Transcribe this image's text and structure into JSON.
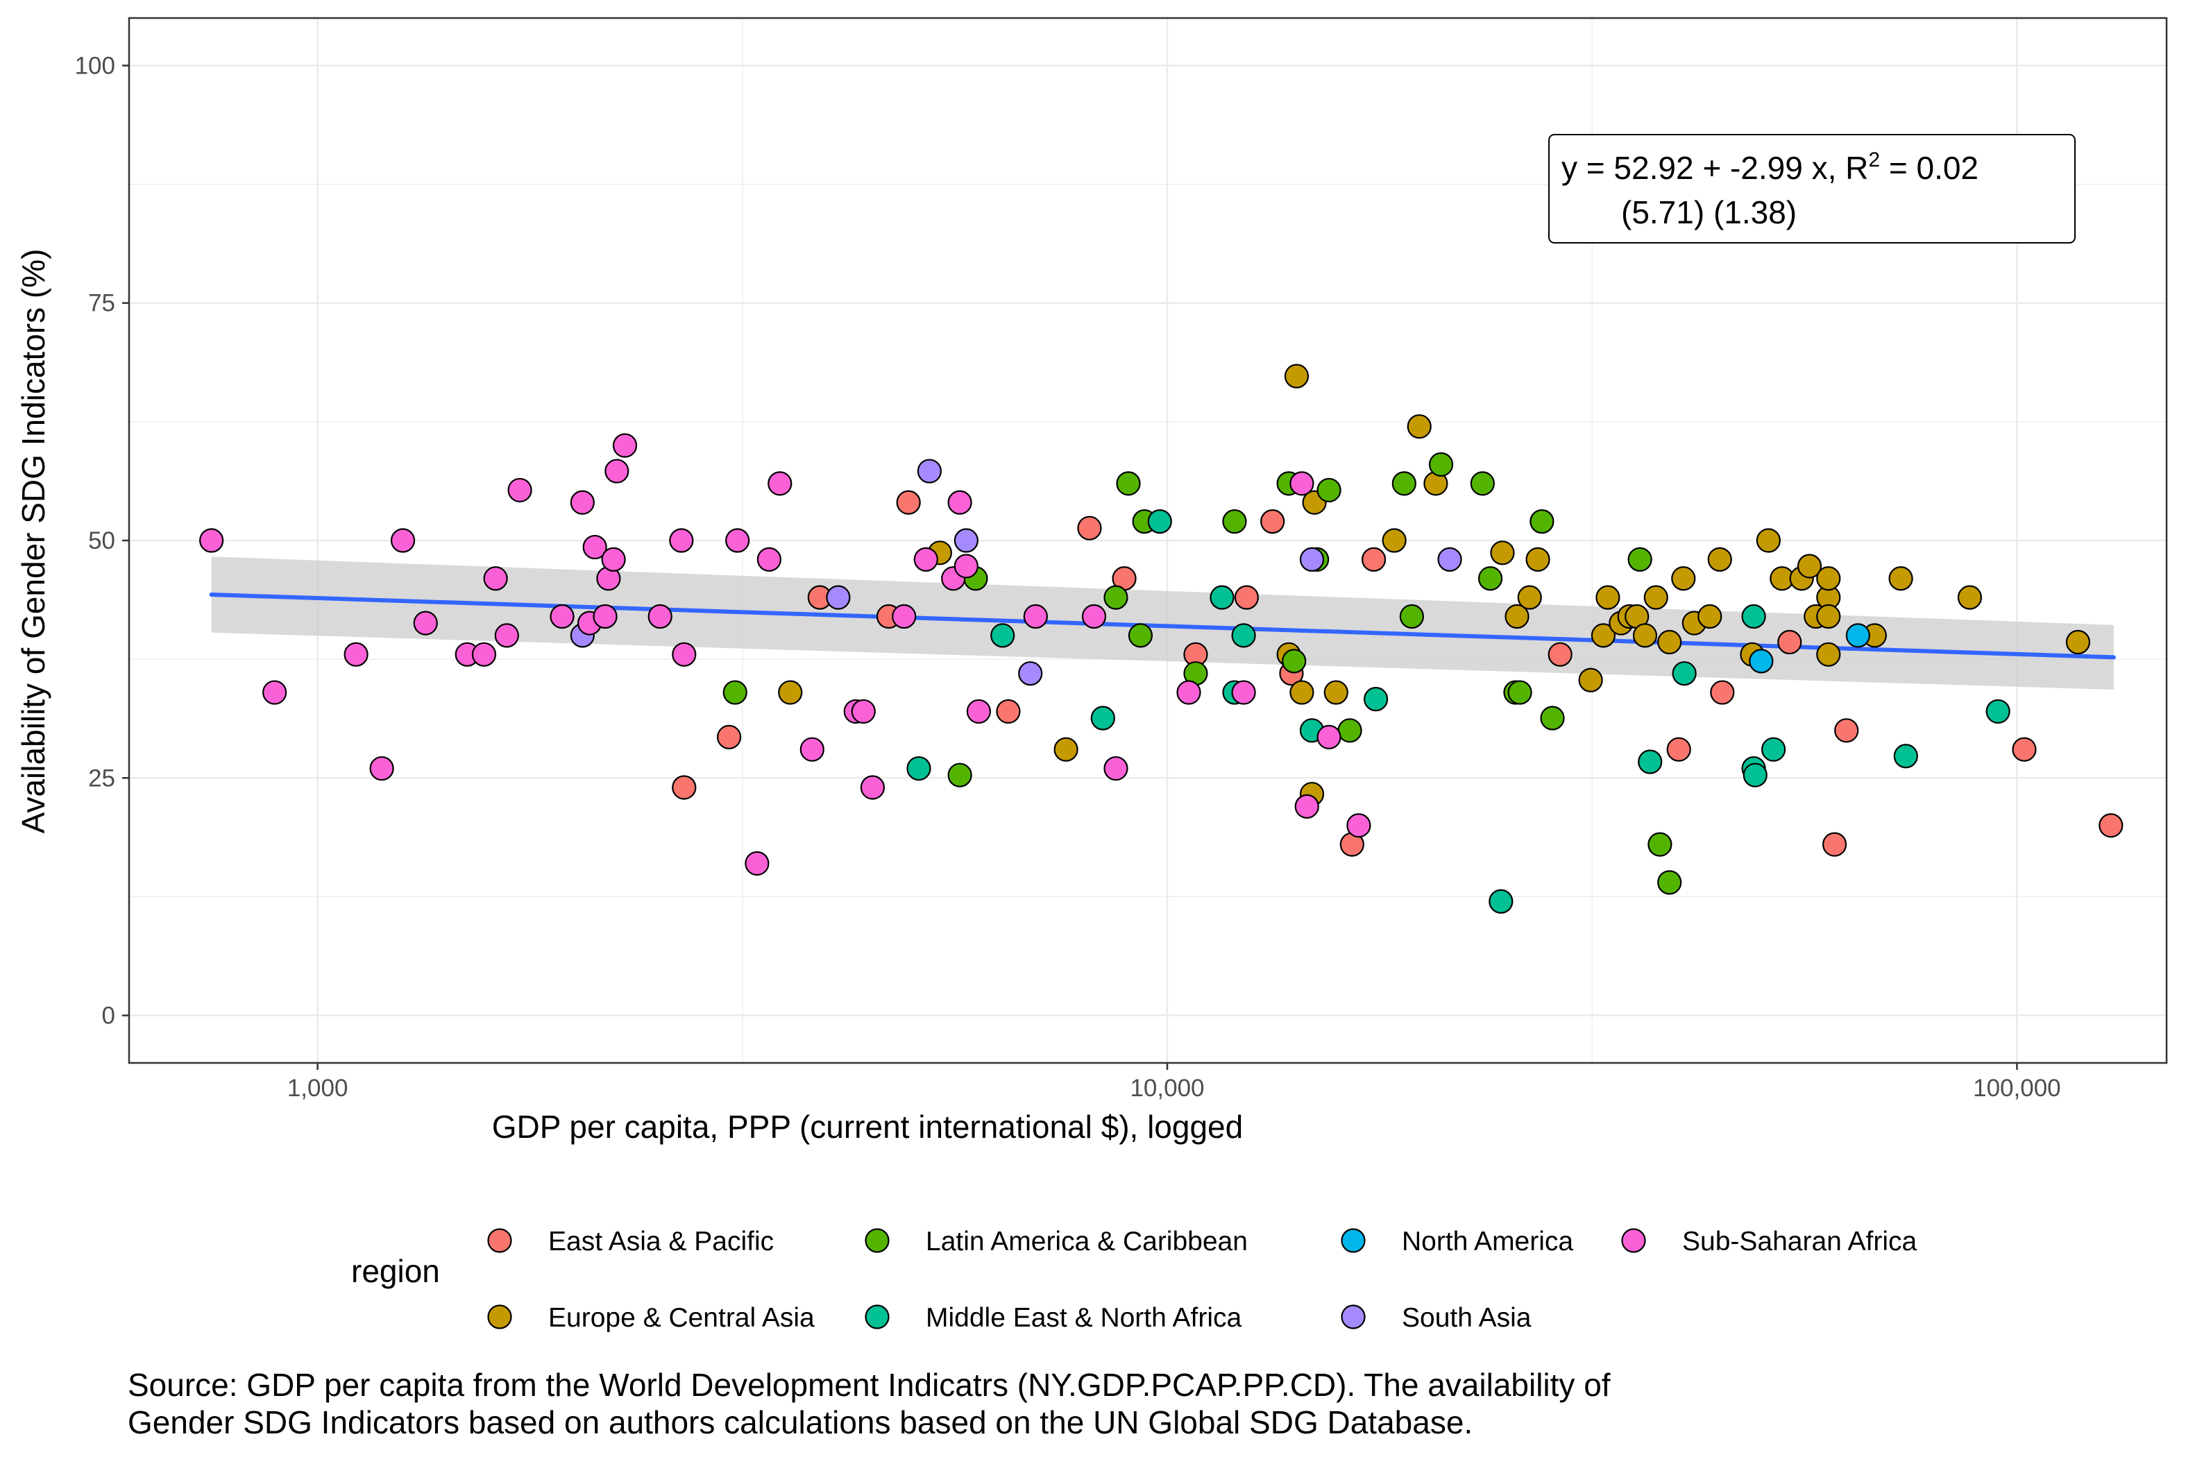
{
  "chart_data": {
    "type": "scatter",
    "xlabel": "GDP per capita, PPP (current international $), logged",
    "ylabel": "Availability of Gender SDG Indicators (%)",
    "x_scale": "log10",
    "xlim": [
      600,
      150000
    ],
    "ylim": [
      -5,
      105
    ],
    "x_ticks": [
      1000,
      10000,
      100000
    ],
    "x_tick_labels": [
      "1,000",
      "10,000",
      "100,000"
    ],
    "y_ticks": [
      0,
      25,
      50,
      75,
      100
    ],
    "y_tick_labels": [
      "0",
      "25",
      "50",
      "75",
      "100"
    ],
    "grid": true,
    "annotation": {
      "line1_prefix": "y = 52.92 + -2.99 x, R",
      "line1_sup": "2",
      "line1_suffix": " = 0.02",
      "line2": "(5.71) (1.38)"
    },
    "trend": {
      "x": [
        750,
        130000
      ],
      "y": [
        44.3,
        37.7
      ],
      "lower": [
        40.3,
        34.3
      ],
      "upper": [
        48.3,
        41.1
      ],
      "color": "#3366ff",
      "band_color": "#cccccc"
    },
    "legend": {
      "title": "region",
      "position": "bottom",
      "entries": [
        {
          "name": "East Asia & Pacific",
          "color": "#f8766d"
        },
        {
          "name": "Europe & Central Asia",
          "color": "#c49a00"
        },
        {
          "name": "Latin America & Caribbean",
          "color": "#53b400"
        },
        {
          "name": "Middle East & North Africa",
          "color": "#00c094"
        },
        {
          "name": "North America",
          "color": "#00b6eb"
        },
        {
          "name": "South Asia",
          "color": "#a58aff"
        },
        {
          "name": "Sub-Saharan Africa",
          "color": "#fb61d7"
        }
      ]
    },
    "series": [
      {
        "name": "East Asia & Pacific",
        "color": "#f8766d",
        "points": [
          [
            2700,
            24
          ],
          [
            3050,
            29.3
          ],
          [
            3900,
            44
          ],
          [
            4700,
            42
          ],
          [
            4960,
            54
          ],
          [
            6500,
            32
          ],
          [
            8100,
            51.3
          ],
          [
            8900,
            46
          ],
          [
            10800,
            38
          ],
          [
            12400,
            44
          ],
          [
            13300,
            52
          ],
          [
            14000,
            36
          ],
          [
            16500,
            18
          ],
          [
            17500,
            48
          ],
          [
            29000,
            38
          ],
          [
            40000,
            28
          ],
          [
            45000,
            34
          ],
          [
            54000,
            39.3
          ],
          [
            61000,
            18
          ],
          [
            63000,
            30
          ],
          [
            102000,
            28
          ],
          [
            129000,
            20
          ]
        ]
      },
      {
        "name": "Europe & Central Asia",
        "color": "#c49a00",
        "points": [
          [
            3600,
            34
          ],
          [
            5400,
            48.7
          ],
          [
            7600,
            28
          ],
          [
            13900,
            38
          ],
          [
            14200,
            67.3
          ],
          [
            14400,
            34
          ],
          [
            14800,
            23.3
          ],
          [
            14900,
            54
          ],
          [
            15800,
            34
          ],
          [
            18500,
            50
          ],
          [
            19800,
            62
          ],
          [
            20700,
            56
          ],
          [
            24800,
            48.7
          ],
          [
            25800,
            42
          ],
          [
            26700,
            44
          ],
          [
            27300,
            48
          ],
          [
            31500,
            35.3
          ],
          [
            32600,
            40
          ],
          [
            33000,
            44
          ],
          [
            34200,
            41.3
          ],
          [
            35000,
            42
          ],
          [
            35700,
            42
          ],
          [
            36500,
            40
          ],
          [
            37600,
            44
          ],
          [
            39000,
            39.3
          ],
          [
            40500,
            46
          ],
          [
            41700,
            41.3
          ],
          [
            43500,
            42
          ],
          [
            44700,
            48
          ],
          [
            48800,
            38
          ],
          [
            51000,
            50
          ],
          [
            52900,
            46
          ],
          [
            55800,
            46
          ],
          [
            57000,
            47.3
          ],
          [
            58000,
            42
          ],
          [
            60000,
            44
          ],
          [
            60000,
            42
          ],
          [
            60000,
            46
          ],
          [
            60000,
            38
          ],
          [
            68000,
            40
          ],
          [
            73000,
            46
          ],
          [
            88000,
            44
          ],
          [
            118000,
            39.3
          ]
        ]
      },
      {
        "name": "Latin America & Caribbean",
        "color": "#53b400",
        "points": [
          [
            3100,
            34
          ],
          [
            5700,
            25.3
          ],
          [
            5950,
            46
          ],
          [
            8700,
            44
          ],
          [
            9000,
            56
          ],
          [
            9300,
            40
          ],
          [
            9400,
            52
          ],
          [
            10800,
            36
          ],
          [
            12000,
            52
          ],
          [
            13900,
            56
          ],
          [
            14100,
            37.3
          ],
          [
            15000,
            48
          ],
          [
            15500,
            55.3
          ],
          [
            16400,
            30
          ],
          [
            19000,
            56
          ],
          [
            19400,
            42
          ],
          [
            21000,
            58
          ],
          [
            23500,
            56
          ],
          [
            24000,
            46
          ],
          [
            25700,
            34
          ],
          [
            26000,
            34
          ],
          [
            27600,
            52
          ],
          [
            28400,
            31.3
          ],
          [
            36000,
            48
          ],
          [
            38000,
            18
          ],
          [
            39000,
            14
          ]
        ]
      },
      {
        "name": "Middle East & North Africa",
        "color": "#00c094",
        "points": [
          [
            5100,
            26
          ],
          [
            6400,
            40
          ],
          [
            8400,
            31.3
          ],
          [
            9800,
            52
          ],
          [
            11600,
            44
          ],
          [
            12000,
            34
          ],
          [
            12300,
            40
          ],
          [
            14800,
            30
          ],
          [
            17600,
            33.3
          ],
          [
            24700,
            12
          ],
          [
            37000,
            26.7
          ],
          [
            40600,
            36
          ],
          [
            49000,
            42
          ],
          [
            49000,
            26
          ],
          [
            49200,
            25.3
          ],
          [
            51700,
            28
          ],
          [
            74000,
            27.3
          ],
          [
            95000,
            32
          ]
        ]
      },
      {
        "name": "North America",
        "color": "#00b6eb",
        "points": [
          [
            50000,
            37.3
          ],
          [
            65000,
            40
          ]
        ]
      },
      {
        "name": "South Asia",
        "color": "#a58aff",
        "points": [
          [
            2050,
            40
          ],
          [
            4100,
            44
          ],
          [
            5250,
            57.3
          ],
          [
            5800,
            50
          ],
          [
            6900,
            36
          ],
          [
            14800,
            48
          ],
          [
            21500,
            48
          ]
        ]
      },
      {
        "name": "Sub-Saharan Africa",
        "color": "#fb61d7",
        "points": [
          [
            750,
            50
          ],
          [
            890,
            34
          ],
          [
            1110,
            38
          ],
          [
            1190,
            26
          ],
          [
            1260,
            50
          ],
          [
            1340,
            41.3
          ],
          [
            1500,
            38
          ],
          [
            1570,
            38
          ],
          [
            1620,
            46
          ],
          [
            1670,
            40
          ],
          [
            1730,
            55.3
          ],
          [
            1940,
            42
          ],
          [
            2050,
            54
          ],
          [
            2090,
            41.3
          ],
          [
            2120,
            49.3
          ],
          [
            2180,
            42
          ],
          [
            2200,
            46
          ],
          [
            2230,
            48
          ],
          [
            2250,
            57.3
          ],
          [
            2300,
            60
          ],
          [
            2530,
            42
          ],
          [
            2680,
            50
          ],
          [
            2700,
            38
          ],
          [
            3120,
            50
          ],
          [
            3290,
            16
          ],
          [
            3400,
            48
          ],
          [
            3500,
            56
          ],
          [
            3820,
            28
          ],
          [
            4300,
            32
          ],
          [
            4390,
            32
          ],
          [
            4500,
            24
          ],
          [
            4900,
            42
          ],
          [
            5200,
            48
          ],
          [
            5600,
            46
          ],
          [
            5700,
            54
          ],
          [
            5800,
            47.3
          ],
          [
            6000,
            32
          ],
          [
            7000,
            42
          ],
          [
            8200,
            42
          ],
          [
            8700,
            26
          ],
          [
            10600,
            34
          ],
          [
            12300,
            34
          ],
          [
            14400,
            56
          ],
          [
            14600,
            22
          ],
          [
            15500,
            29.3
          ],
          [
            16800,
            20
          ]
        ]
      }
    ]
  },
  "caption": {
    "line1": "Source: GDP per capita from the World Development Indicatrs (NY.GDP.PCAP.PP.CD). The availability of",
    "line2": "Gender SDG Indicators based on authors calculations based on the UN Global SDG Database."
  }
}
